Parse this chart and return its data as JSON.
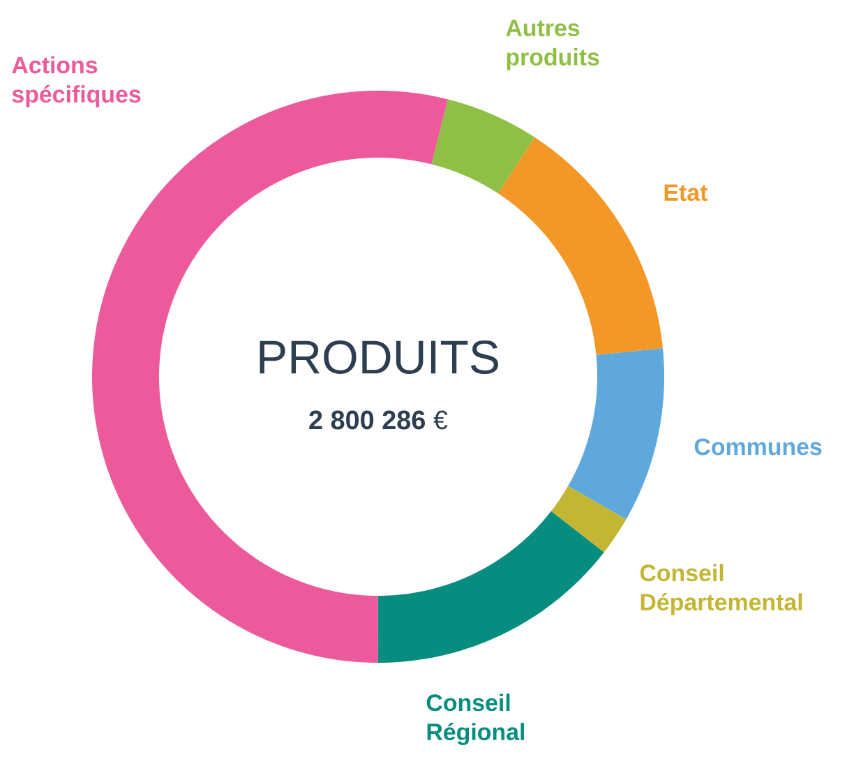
{
  "chart_data": {
    "type": "donut",
    "title": "PRODUITS",
    "subtitle": "**2 800 286** €",
    "categories": [
      "Autres produits",
      "Etat",
      "Communes",
      "Conseil Départemental",
      "Conseil Régional",
      "Actions spécifiques"
    ],
    "values": [
      5.3,
      14.2,
      9.9,
      2.2,
      14.5,
      53.9
    ],
    "colors": [
      "#8fc045",
      "#f39727",
      "#5fa8dc",
      "#c3b634",
      "#078c80",
      "#ec5a9b"
    ]
  }
}
